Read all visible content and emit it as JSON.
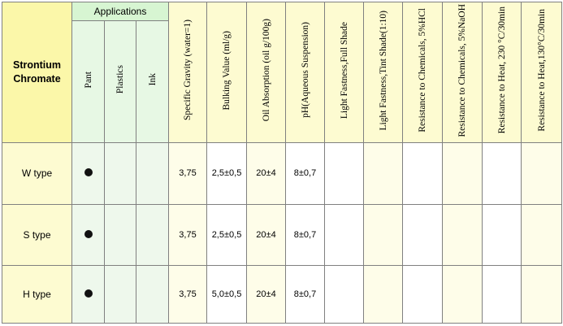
{
  "table": {
    "corner_line1": "Strontium",
    "corner_line2": "Chromate",
    "applications_header": "Applications",
    "application_cols": [
      "Pant",
      "Plastics",
      "Ink"
    ],
    "property_cols": [
      "Specific Gravity (water=1)",
      "Bulking Value (ml/g)",
      "Oil Absorption (oil g/100g)",
      "pH(Aqueous Suspension)",
      "Light Fastness,Full Shade",
      "Light Fastness,Tint Shade(1:10)",
      "Resistance to Chemicals, 5%HCl",
      "Resistance to Chemicals, 5%NaOH",
      "Resistance to Heat, 230 °C/30min",
      "Resistance to Heat,130°C/30min"
    ],
    "rows": [
      {
        "label": "W type",
        "values": [
          "3,75",
          "2,5±0,5",
          "20±4",
          "8±0,7",
          "",
          "",
          "",
          "",
          "",
          ""
        ]
      },
      {
        "label": "S type",
        "values": [
          "3,75",
          "2,5±0,5",
          "20±4",
          "8±0,7",
          "",
          "",
          "",
          "",
          "",
          ""
        ]
      },
      {
        "label": "H type",
        "values": [
          "3,75",
          "5,0±0,5",
          "20±4",
          "8±0,7",
          "",
          "",
          "",
          "",
          "",
          ""
        ]
      }
    ]
  },
  "colors": {
    "header_yellow": "#fbf7a9",
    "applications_green": "#d7f5d2",
    "border": "#808080",
    "dot": "#111111"
  },
  "icons": {
    "application_marker": "filled-circle-icon"
  }
}
